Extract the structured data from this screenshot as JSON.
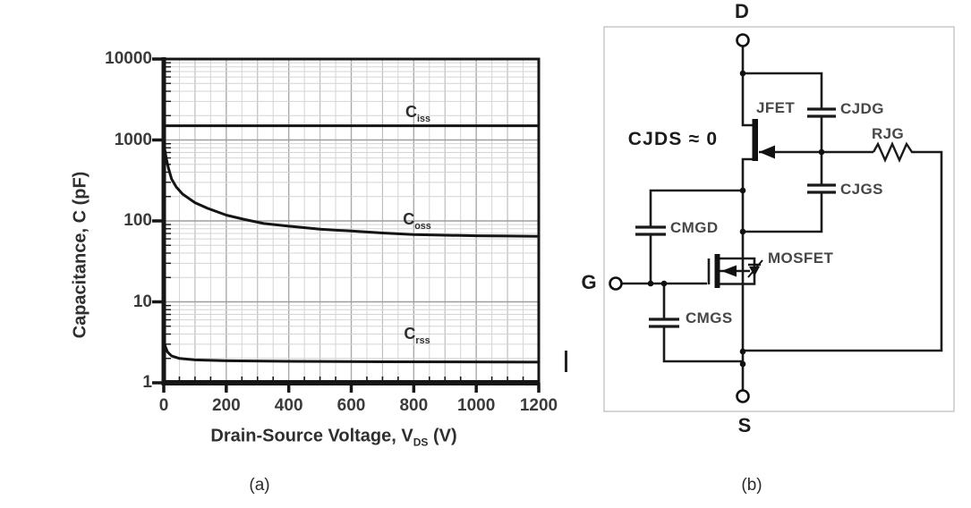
{
  "captions": {
    "a": "(a)",
    "b": "(b)"
  },
  "chart_data": {
    "type": "line",
    "title": "",
    "xlabel": "Drain-Source Voltage, V_DS (V)",
    "xlabel_main": "Drain-Source Voltage, V",
    "xlabel_sub": "DS",
    "xlabel_unit": " (V)",
    "ylabel": "Capacitance, C (pF)",
    "xlim": [
      0,
      1200
    ],
    "ylim": [
      1,
      10000
    ],
    "yscale": "log",
    "grid": true,
    "legend": "inline-curve-labels",
    "x_ticks": [
      0,
      200,
      400,
      600,
      800,
      1000,
      1200
    ],
    "y_ticks": [
      1,
      10,
      100,
      1000,
      10000
    ],
    "x_minor_step": 50,
    "series": [
      {
        "name": "Ciss",
        "label": {
          "main": "C",
          "sub": "iss"
        },
        "x": [
          0,
          1200
        ],
        "y": [
          1500,
          1500
        ]
      },
      {
        "name": "Coss",
        "label": {
          "main": "C",
          "sub": "oss"
        },
        "x": [
          0,
          3,
          8,
          15,
          25,
          40,
          60,
          80,
          100,
          140,
          200,
          260,
          320,
          400,
          500,
          600,
          700,
          800,
          900,
          1000,
          1100,
          1200
        ],
        "y": [
          950,
          780,
          590,
          450,
          330,
          262,
          215,
          190,
          168,
          143,
          118,
          104,
          93,
          86,
          79,
          75,
          71,
          68,
          66.5,
          65.5,
          65,
          64.5
        ]
      },
      {
        "name": "Crss",
        "label": {
          "main": "C",
          "sub": "rss"
        },
        "x": [
          0,
          5,
          12,
          25,
          50,
          100,
          200,
          400,
          700,
          1200
        ],
        "y": [
          3.4,
          2.8,
          2.4,
          2.15,
          2.0,
          1.92,
          1.87,
          1.84,
          1.82,
          1.8
        ]
      }
    ]
  },
  "circuit": {
    "terminals": {
      "drain": "D",
      "gate": "G",
      "source": "S"
    },
    "note": "CJDS ≈ 0",
    "labels": {
      "jfet": "JFET",
      "cjdg": "CJDG",
      "rjg": "RJG",
      "cjgs": "CJGS",
      "cmgd": "CMGD",
      "mosfet": "MOSFET",
      "cmgs": "CMGS"
    }
  }
}
